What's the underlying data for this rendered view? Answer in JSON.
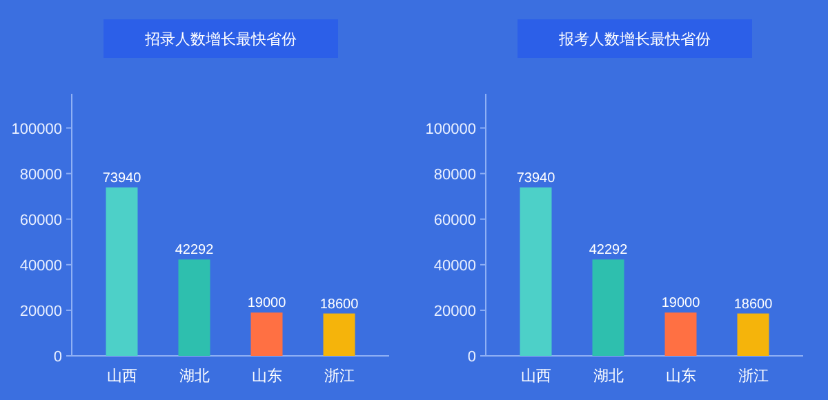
{
  "chart_data": [
    {
      "type": "bar",
      "title": "招录人数增长最快省份",
      "categories": [
        "山西",
        "湖北",
        "山东",
        "浙江"
      ],
      "values": [
        73940,
        42292,
        19000,
        18600
      ],
      "colors": [
        "#4dd0c8",
        "#2ebfae",
        "#ff7043",
        "#f5b40b"
      ],
      "ylim": [
        0,
        115000
      ],
      "yticks": [
        0,
        20000,
        40000,
        60000,
        80000,
        100000
      ],
      "data_labels": true
    },
    {
      "type": "bar",
      "title": "报考人数增长最快省份",
      "categories": [
        "山西",
        "湖北",
        "山东",
        "浙江"
      ],
      "values": [
        73940,
        42292,
        19000,
        18600
      ],
      "colors": [
        "#4dd0c8",
        "#2ebfae",
        "#ff7043",
        "#f5b40b"
      ],
      "ylim": [
        0,
        115000
      ],
      "yticks": [
        0,
        20000,
        40000,
        60000,
        80000,
        100000
      ],
      "data_labels": true
    }
  ]
}
